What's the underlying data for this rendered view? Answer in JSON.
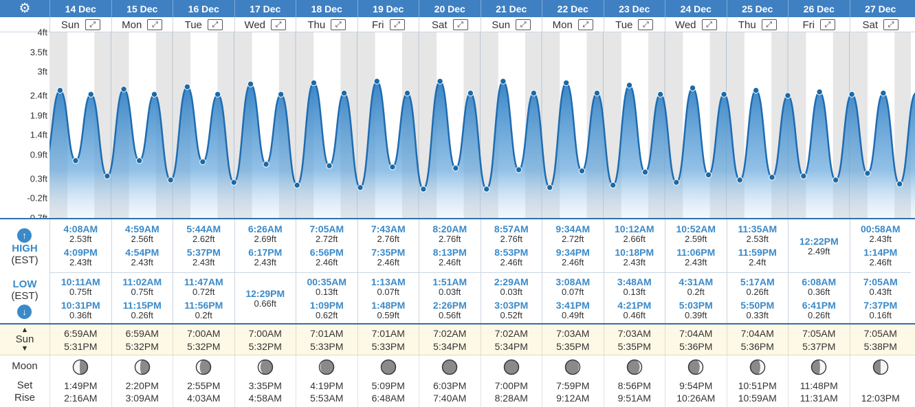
{
  "topbar": {
    "settings_icon": "gear-icon"
  },
  "days": [
    {
      "date": "14 Dec",
      "dow": "Sun"
    },
    {
      "date": "15 Dec",
      "dow": "Mon"
    },
    {
      "date": "16 Dec",
      "dow": "Tue"
    },
    {
      "date": "17 Dec",
      "dow": "Wed"
    },
    {
      "date": "18 Dec",
      "dow": "Thu"
    },
    {
      "date": "19 Dec",
      "dow": "Fri"
    },
    {
      "date": "20 Dec",
      "dow": "Sat"
    },
    {
      "date": "21 Dec",
      "dow": "Sun"
    },
    {
      "date": "22 Dec",
      "dow": "Mon"
    },
    {
      "date": "23 Dec",
      "dow": "Tue"
    },
    {
      "date": "24 Dec",
      "dow": "Wed"
    },
    {
      "date": "25 Dec",
      "dow": "Thu"
    },
    {
      "date": "26 Dec",
      "dow": "Fri"
    },
    {
      "date": "27 Dec",
      "dow": "Sat"
    }
  ],
  "expand_icon": "expand-arrows-icon",
  "labels": {
    "high": "HIGH",
    "high_tz": "(EST)",
    "low": "LOW",
    "low_tz": "(EST)",
    "sun": "Sun",
    "moon": "Moon",
    "set": "Set",
    "rise": "Rise"
  },
  "chart_data": {
    "type": "area",
    "ylabel_ticks": [
      "4ft",
      "3.5ft",
      "3ft",
      "2.4ft",
      "1.9ft",
      "1.4ft",
      "0.9ft",
      "0.3ft",
      "-0.2ft",
      "-0.7ft"
    ],
    "ylim": [
      -0.7,
      4.0
    ],
    "colors": {
      "fill": "#2f7fc4",
      "line": "#1f6bb0",
      "point": "#1a6aa8",
      "night_band": "#e6e6e6"
    },
    "series": [
      {
        "points": [
          {
            "d": 0,
            "t": "4:08AM",
            "h": 2.53
          },
          {
            "d": 0,
            "t": "10:11AM",
            "h": 0.75
          },
          {
            "d": 0,
            "t": "4:09PM",
            "h": 2.43
          },
          {
            "d": 0,
            "t": "10:31PM",
            "h": 0.36
          },
          {
            "d": 1,
            "t": "4:59AM",
            "h": 2.56
          },
          {
            "d": 1,
            "t": "11:02AM",
            "h": 0.75
          },
          {
            "d": 1,
            "t": "4:54PM",
            "h": 2.43
          },
          {
            "d": 1,
            "t": "11:15PM",
            "h": 0.26
          },
          {
            "d": 2,
            "t": "5:44AM",
            "h": 2.62
          },
          {
            "d": 2,
            "t": "11:47AM",
            "h": 0.72
          },
          {
            "d": 2,
            "t": "5:37PM",
            "h": 2.43
          },
          {
            "d": 2,
            "t": "11:56PM",
            "h": 0.2
          },
          {
            "d": 3,
            "t": "6:26AM",
            "h": 2.69
          },
          {
            "d": 3,
            "t": "12:29PM",
            "h": 0.66
          },
          {
            "d": 3,
            "t": "6:17PM",
            "h": 2.43
          },
          {
            "d": 4,
            "t": "00:35AM",
            "h": 0.13
          },
          {
            "d": 4,
            "t": "7:05AM",
            "h": 2.72
          },
          {
            "d": 4,
            "t": "1:09PM",
            "h": 0.62
          },
          {
            "d": 4,
            "t": "6:56PM",
            "h": 2.46
          },
          {
            "d": 5,
            "t": "1:13AM",
            "h": 0.07
          },
          {
            "d": 5,
            "t": "7:43AM",
            "h": 2.76
          },
          {
            "d": 5,
            "t": "1:48PM",
            "h": 0.59
          },
          {
            "d": 5,
            "t": "7:35PM",
            "h": 2.46
          },
          {
            "d": 6,
            "t": "1:51AM",
            "h": 0.03
          },
          {
            "d": 6,
            "t": "8:20AM",
            "h": 2.76
          },
          {
            "d": 6,
            "t": "2:26PM",
            "h": 0.56
          },
          {
            "d": 6,
            "t": "8:13PM",
            "h": 2.46
          },
          {
            "d": 7,
            "t": "2:29AM",
            "h": 0.03
          },
          {
            "d": 7,
            "t": "8:57AM",
            "h": 2.76
          },
          {
            "d": 7,
            "t": "3:03PM",
            "h": 0.52
          },
          {
            "d": 7,
            "t": "8:53PM",
            "h": 2.46
          },
          {
            "d": 8,
            "t": "3:08AM",
            "h": 0.07
          },
          {
            "d": 8,
            "t": "9:34AM",
            "h": 2.72
          },
          {
            "d": 8,
            "t": "3:41PM",
            "h": 0.49
          },
          {
            "d": 8,
            "t": "9:34PM",
            "h": 2.46
          },
          {
            "d": 9,
            "t": "3:48AM",
            "h": 0.13
          },
          {
            "d": 9,
            "t": "10:12AM",
            "h": 2.66
          },
          {
            "d": 9,
            "t": "4:21PM",
            "h": 0.46
          },
          {
            "d": 9,
            "t": "10:18PM",
            "h": 2.43
          },
          {
            "d": 10,
            "t": "4:31AM",
            "h": 0.2
          },
          {
            "d": 10,
            "t": "10:52AM",
            "h": 2.59
          },
          {
            "d": 10,
            "t": "5:03PM",
            "h": 0.39
          },
          {
            "d": 10,
            "t": "11:06PM",
            "h": 2.43
          },
          {
            "d": 11,
            "t": "5:17AM",
            "h": 0.26
          },
          {
            "d": 11,
            "t": "11:35AM",
            "h": 2.53
          },
          {
            "d": 11,
            "t": "5:50PM",
            "h": 0.33
          },
          {
            "d": 11,
            "t": "11:59PM",
            "h": 2.4
          },
          {
            "d": 12,
            "t": "6:08AM",
            "h": 0.36
          },
          {
            "d": 12,
            "t": "12:22PM",
            "h": 2.49
          },
          {
            "d": 12,
            "t": "6:41PM",
            "h": 0.26
          },
          {
            "d": 13,
            "t": "00:58AM",
            "h": 2.43
          },
          {
            "d": 13,
            "t": "7:05AM",
            "h": 0.43
          },
          {
            "d": 13,
            "t": "1:14PM",
            "h": 2.46
          },
          {
            "d": 13,
            "t": "7:37PM",
            "h": 0.16
          }
        ]
      }
    ],
    "sun": [
      [
        "6:59AM",
        "5:31PM"
      ],
      [
        "6:59AM",
        "5:32PM"
      ],
      [
        "7:00AM",
        "5:32PM"
      ],
      [
        "7:00AM",
        "5:32PM"
      ],
      [
        "7:01AM",
        "5:33PM"
      ],
      [
        "7:01AM",
        "5:33PM"
      ],
      [
        "7:02AM",
        "5:34PM"
      ],
      [
        "7:02AM",
        "5:34PM"
      ],
      [
        "7:03AM",
        "5:35PM"
      ],
      [
        "7:03AM",
        "5:35PM"
      ],
      [
        "7:04AM",
        "5:36PM"
      ],
      [
        "7:04AM",
        "5:36PM"
      ],
      [
        "7:05AM",
        "5:37PM"
      ],
      [
        "7:05AM",
        "5:38PM"
      ]
    ]
  },
  "tides": [
    {
      "high": [
        {
          "t": "4:08AM",
          "h": "2.53ft"
        },
        {
          "t": "4:09PM",
          "h": "2.43ft"
        }
      ],
      "low": [
        {
          "t": "10:11AM",
          "h": "0.75ft"
        },
        {
          "t": "10:31PM",
          "h": "0.36ft"
        }
      ]
    },
    {
      "high": [
        {
          "t": "4:59AM",
          "h": "2.56ft"
        },
        {
          "t": "4:54PM",
          "h": "2.43ft"
        }
      ],
      "low": [
        {
          "t": "11:02AM",
          "h": "0.75ft"
        },
        {
          "t": "11:15PM",
          "h": "0.26ft"
        }
      ]
    },
    {
      "high": [
        {
          "t": "5:44AM",
          "h": "2.62ft"
        },
        {
          "t": "5:37PM",
          "h": "2.43ft"
        }
      ],
      "low": [
        {
          "t": "11:47AM",
          "h": "0.72ft"
        },
        {
          "t": "11:56PM",
          "h": "0.2ft"
        }
      ]
    },
    {
      "high": [
        {
          "t": "6:26AM",
          "h": "2.69ft"
        },
        {
          "t": "6:17PM",
          "h": "2.43ft"
        }
      ],
      "low": [
        {
          "t": "12:29PM",
          "h": "0.66ft"
        }
      ]
    },
    {
      "high": [
        {
          "t": "7:05AM",
          "h": "2.72ft"
        },
        {
          "t": "6:56PM",
          "h": "2.46ft"
        }
      ],
      "low": [
        {
          "t": "00:35AM",
          "h": "0.13ft"
        },
        {
          "t": "1:09PM",
          "h": "0.62ft"
        }
      ]
    },
    {
      "high": [
        {
          "t": "7:43AM",
          "h": "2.76ft"
        },
        {
          "t": "7:35PM",
          "h": "2.46ft"
        }
      ],
      "low": [
        {
          "t": "1:13AM",
          "h": "0.07ft"
        },
        {
          "t": "1:48PM",
          "h": "0.59ft"
        }
      ]
    },
    {
      "high": [
        {
          "t": "8:20AM",
          "h": "2.76ft"
        },
        {
          "t": "8:13PM",
          "h": "2.46ft"
        }
      ],
      "low": [
        {
          "t": "1:51AM",
          "h": "0.03ft"
        },
        {
          "t": "2:26PM",
          "h": "0.56ft"
        }
      ]
    },
    {
      "high": [
        {
          "t": "8:57AM",
          "h": "2.76ft"
        },
        {
          "t": "8:53PM",
          "h": "2.46ft"
        }
      ],
      "low": [
        {
          "t": "2:29AM",
          "h": "0.03ft"
        },
        {
          "t": "3:03PM",
          "h": "0.52ft"
        }
      ]
    },
    {
      "high": [
        {
          "t": "9:34AM",
          "h": "2.72ft"
        },
        {
          "t": "9:34PM",
          "h": "2.46ft"
        }
      ],
      "low": [
        {
          "t": "3:08AM",
          "h": "0.07ft"
        },
        {
          "t": "3:41PM",
          "h": "0.49ft"
        }
      ]
    },
    {
      "high": [
        {
          "t": "10:12AM",
          "h": "2.66ft"
        },
        {
          "t": "10:18PM",
          "h": "2.43ft"
        }
      ],
      "low": [
        {
          "t": "3:48AM",
          "h": "0.13ft"
        },
        {
          "t": "4:21PM",
          "h": "0.46ft"
        }
      ]
    },
    {
      "high": [
        {
          "t": "10:52AM",
          "h": "2.59ft"
        },
        {
          "t": "11:06PM",
          "h": "2.43ft"
        }
      ],
      "low": [
        {
          "t": "4:31AM",
          "h": "0.2ft"
        },
        {
          "t": "5:03PM",
          "h": "0.39ft"
        }
      ]
    },
    {
      "high": [
        {
          "t": "11:35AM",
          "h": "2.53ft"
        },
        {
          "t": "11:59PM",
          "h": "2.4ft"
        }
      ],
      "low": [
        {
          "t": "5:17AM",
          "h": "0.26ft"
        },
        {
          "t": "5:50PM",
          "h": "0.33ft"
        }
      ]
    },
    {
      "high": [
        {
          "t": "12:22PM",
          "h": "2.49ft"
        }
      ],
      "low": [
        {
          "t": "6:08AM",
          "h": "0.36ft"
        },
        {
          "t": "6:41PM",
          "h": "0.26ft"
        }
      ]
    },
    {
      "high": [
        {
          "t": "00:58AM",
          "h": "2.43ft"
        },
        {
          "t": "1:14PM",
          "h": "2.46ft"
        }
      ],
      "low": [
        {
          "t": "7:05AM",
          "h": "0.43ft"
        },
        {
          "t": "7:37PM",
          "h": "0.16ft"
        }
      ]
    }
  ],
  "moon": [
    {
      "set": "1:49PM",
      "rise": "2:16AM",
      "illum": 0.45,
      "waxing": false
    },
    {
      "set": "2:20PM",
      "rise": "3:09AM",
      "illum": 0.35,
      "waxing": false
    },
    {
      "set": "2:55PM",
      "rise": "4:03AM",
      "illum": 0.25,
      "waxing": false
    },
    {
      "set": "3:35PM",
      "rise": "4:58AM",
      "illum": 0.16,
      "waxing": false
    },
    {
      "set": "4:19PM",
      "rise": "5:53AM",
      "illum": 0.08,
      "waxing": false
    },
    {
      "set": "5:09PM",
      "rise": "6:48AM",
      "illum": 0.03,
      "waxing": false
    },
    {
      "set": "6:03PM",
      "rise": "7:40AM",
      "illum": 0.01,
      "waxing": false
    },
    {
      "set": "7:00PM",
      "rise": "8:28AM",
      "illum": 0.02,
      "waxing": true
    },
    {
      "set": "7:59PM",
      "rise": "9:12AM",
      "illum": 0.07,
      "waxing": true
    },
    {
      "set": "8:56PM",
      "rise": "9:51AM",
      "illum": 0.14,
      "waxing": true
    },
    {
      "set": "9:54PM",
      "rise": "10:26AM",
      "illum": 0.22,
      "waxing": true
    },
    {
      "set": "10:51PM",
      "rise": "10:59AM",
      "illum": 0.31,
      "waxing": true
    },
    {
      "set": "11:48PM",
      "rise": "11:31AM",
      "illum": 0.41,
      "waxing": true
    },
    {
      "set": "",
      "rise": "12:03PM",
      "illum": 0.5,
      "waxing": true
    }
  ]
}
